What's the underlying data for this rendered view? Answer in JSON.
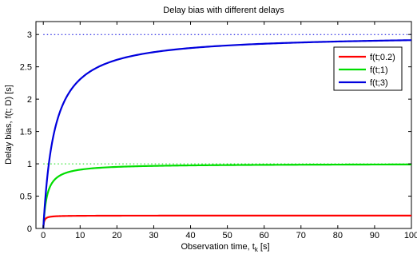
{
  "chart_data": {
    "type": "line",
    "title": "Delay bias with different delays",
    "xlabel": "Observation time, t",
    "xlabel_subscript": "k",
    "xlabel_unit": " [s]",
    "ylabel": "Delay bias, f(t; D) [s]",
    "xlim": [
      -2,
      100
    ],
    "ylim": [
      0,
      3.2
    ],
    "xticks": [
      0,
      10,
      20,
      30,
      40,
      50,
      60,
      70,
      80,
      90,
      100
    ],
    "yticks": [
      0,
      0.5,
      1,
      1.5,
      2,
      2.5,
      3
    ],
    "ytick_labels": [
      "0",
      "0.5",
      "1",
      "1.5",
      "2",
      "2.5",
      "3"
    ],
    "grid": false,
    "legend_position": "top-right",
    "series": [
      {
        "name": "f(t;0.2)",
        "color": "#ff0000",
        "delay": 0.2,
        "x": [
          0,
          0.5,
          1,
          2,
          5,
          10,
          20,
          50,
          100
        ],
        "values": [
          0,
          0.143,
          0.167,
          0.182,
          0.192,
          0.196,
          0.198,
          0.199,
          0.2
        ]
      },
      {
        "name": "f(t;1)",
        "color": "#00dd00",
        "delay": 1,
        "x": [
          0,
          0.5,
          1,
          2,
          5,
          10,
          20,
          50,
          100
        ],
        "values": [
          0,
          0.333,
          0.5,
          0.667,
          0.833,
          0.909,
          0.952,
          0.98,
          0.99
        ]
      },
      {
        "name": "f(t;3)",
        "color": "#0000dd",
        "delay": 3,
        "x": [
          0,
          0.5,
          1,
          2,
          5,
          10,
          20,
          50,
          100
        ],
        "values": [
          0,
          0.429,
          0.75,
          1.2,
          1.875,
          2.308,
          2.609,
          2.83,
          2.913
        ]
      }
    ],
    "asymptotes": [
      {
        "value": 1,
        "color": "#00dd00"
      },
      {
        "value": 3,
        "color": "#0000dd"
      }
    ]
  }
}
